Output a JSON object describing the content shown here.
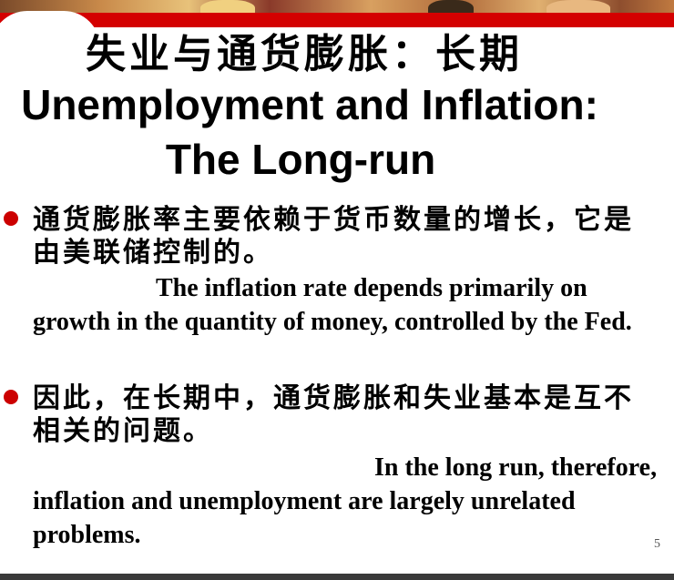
{
  "slide": {
    "title_cn": "失业与通货膨胀：长期",
    "title_en_line1": "Unemployment and Inflation:",
    "title_en_line2": "The Long-run",
    "bullets": [
      {
        "cn": "通货膨胀率主要依赖于货币数量的增长，它是由美联储控制的。",
        "en": "The inflation rate depends primarily on growth in the quantity of money, controlled by the Fed."
      },
      {
        "cn": "因此，在长期中，通货膨胀和失业基本是互不相关的问题。",
        "en": "In the long run, therefore, inflation and unemployment are largely unrelated problems."
      }
    ],
    "page_number": "5"
  },
  "colors": {
    "accent_red": "#d40000",
    "bullet_red": "#cc0000"
  }
}
